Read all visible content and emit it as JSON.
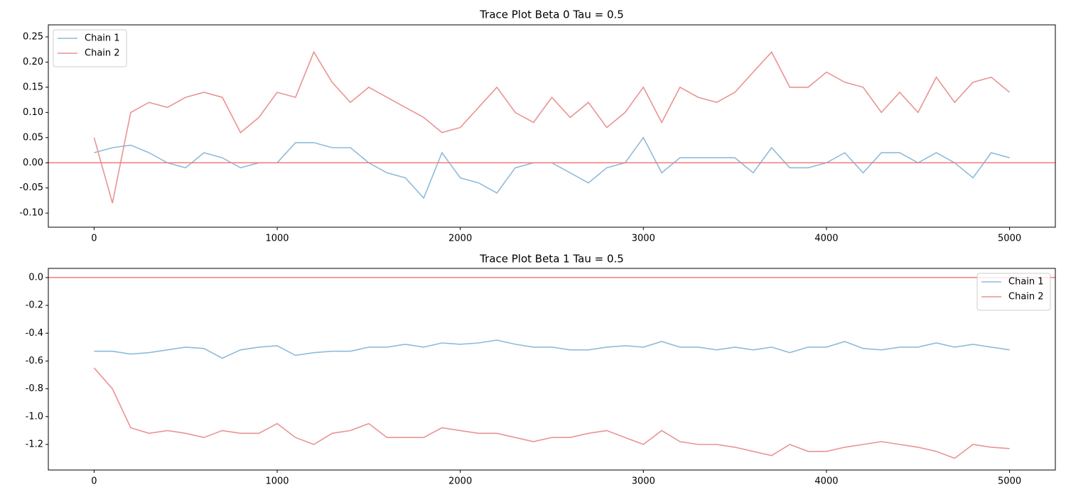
{
  "chart_data": [
    {
      "type": "line",
      "title": "Trace Plot Beta 0 Tau = 0.5",
      "x": [
        0,
        100,
        200,
        300,
        400,
        500,
        600,
        700,
        800,
        900,
        1000,
        1100,
        1200,
        1300,
        1400,
        1500,
        1600,
        1700,
        1800,
        1900,
        2000,
        2100,
        2200,
        2300,
        2400,
        2500,
        2600,
        2700,
        2800,
        2900,
        3000,
        3100,
        3200,
        3300,
        3400,
        3500,
        3600,
        3700,
        3800,
        3900,
        4000,
        4100,
        4200,
        4300,
        4400,
        4500,
        4600,
        4700,
        4800,
        4900,
        5000
      ],
      "series": [
        {
          "name": "Chain 1",
          "color": "#8fbbd9",
          "values": [
            0.02,
            0.03,
            0.035,
            0.02,
            0.0,
            -0.01,
            0.02,
            0.01,
            -0.01,
            0.0,
            0.0,
            0.04,
            0.04,
            0.03,
            0.03,
            0.0,
            -0.02,
            -0.03,
            -0.07,
            0.02,
            -0.03,
            -0.04,
            -0.06,
            -0.01,
            0.0,
            0.0,
            -0.02,
            -0.04,
            -0.01,
            0.0,
            0.05,
            -0.02,
            0.01,
            0.01,
            0.01,
            0.01,
            -0.02,
            0.03,
            -0.01,
            -0.01,
            0.0,
            0.02,
            -0.02,
            0.02,
            0.02,
            0.0,
            0.02,
            0.0,
            -0.03,
            0.02,
            0.01
          ]
        },
        {
          "name": "Chain 2",
          "color": "#ea9393",
          "values": [
            0.05,
            -0.08,
            0.1,
            0.12,
            0.11,
            0.13,
            0.14,
            0.13,
            0.06,
            0.09,
            0.14,
            0.13,
            0.22,
            0.16,
            0.12,
            0.15,
            0.13,
            0.11,
            0.09,
            0.06,
            0.07,
            0.11,
            0.15,
            0.1,
            0.08,
            0.13,
            0.09,
            0.12,
            0.07,
            0.1,
            0.15,
            0.08,
            0.15,
            0.13,
            0.12,
            0.14,
            0.18,
            0.22,
            0.15,
            0.15,
            0.18,
            0.16,
            0.15,
            0.1,
            0.14,
            0.1,
            0.17,
            0.12,
            0.16,
            0.17,
            0.14
          ]
        }
      ],
      "hline": 0,
      "hline_color": "#f47c7c",
      "xlim": [
        -250,
        5250
      ],
      "xticks": [
        0,
        1000,
        2000,
        3000,
        4000,
        5000
      ],
      "ylim": [
        -0.128,
        0.274
      ],
      "yticks": [
        {
          "value": -0.1,
          "label": "-0.10"
        },
        {
          "value": -0.05,
          "label": "-0.05"
        },
        {
          "value": 0,
          "label": "0.00"
        },
        {
          "value": 0.05,
          "label": "0.05"
        },
        {
          "value": 0.1,
          "label": "0.10"
        },
        {
          "value": 0.15,
          "label": "0.15"
        },
        {
          "value": 0.2,
          "label": "0.20"
        },
        {
          "value": 0.25,
          "label": "0.25"
        }
      ],
      "legend": "upper-left"
    },
    {
      "type": "line",
      "title": "Trace Plot Beta 1 Tau = 0.5",
      "x": [
        0,
        100,
        200,
        300,
        400,
        500,
        600,
        700,
        800,
        900,
        1000,
        1100,
        1200,
        1300,
        1400,
        1500,
        1600,
        1700,
        1800,
        1900,
        2000,
        2100,
        2200,
        2300,
        2400,
        2500,
        2600,
        2700,
        2800,
        2900,
        3000,
        3100,
        3200,
        3300,
        3400,
        3500,
        3600,
        3700,
        3800,
        3900,
        4000,
        4100,
        4200,
        4300,
        4400,
        4500,
        4600,
        4700,
        4800,
        4900,
        5000
      ],
      "series": [
        {
          "name": "Chain 1",
          "color": "#8fbbd9",
          "values": [
            -0.53,
            -0.53,
            -0.55,
            -0.54,
            -0.52,
            -0.5,
            -0.51,
            -0.58,
            -0.52,
            -0.5,
            -0.49,
            -0.56,
            -0.54,
            -0.53,
            -0.53,
            -0.5,
            -0.5,
            -0.48,
            -0.5,
            -0.47,
            -0.48,
            -0.47,
            -0.45,
            -0.48,
            -0.5,
            -0.5,
            -0.52,
            -0.52,
            -0.5,
            -0.49,
            -0.5,
            -0.46,
            -0.5,
            -0.5,
            -0.52,
            -0.5,
            -0.52,
            -0.5,
            -0.54,
            -0.5,
            -0.5,
            -0.46,
            -0.51,
            -0.52,
            -0.5,
            -0.5,
            -0.47,
            -0.5,
            -0.48,
            -0.5,
            -0.52
          ]
        },
        {
          "name": "Chain 2",
          "color": "#ea9393",
          "values": [
            -0.65,
            -0.8,
            -1.08,
            -1.12,
            -1.1,
            -1.12,
            -1.15,
            -1.1,
            -1.12,
            -1.12,
            -1.05,
            -1.15,
            -1.2,
            -1.12,
            -1.1,
            -1.05,
            -1.15,
            -1.15,
            -1.15,
            -1.08,
            -1.1,
            -1.12,
            -1.12,
            -1.15,
            -1.18,
            -1.15,
            -1.15,
            -1.12,
            -1.1,
            -1.15,
            -1.2,
            -1.1,
            -1.18,
            -1.2,
            -1.2,
            -1.22,
            -1.25,
            -1.28,
            -1.2,
            -1.25,
            -1.25,
            -1.22,
            -1.2,
            -1.18,
            -1.2,
            -1.22,
            -1.25,
            -1.3,
            -1.2,
            -1.22,
            -1.23
          ]
        }
      ],
      "hline": 0,
      "hline_color": "#f47c7c",
      "xlim": [
        -250,
        5250
      ],
      "xticks": [
        0,
        1000,
        2000,
        3000,
        4000,
        5000
      ],
      "ylim": [
        -1.384,
        0.066
      ],
      "yticks": [
        {
          "value": -1.2,
          "label": "-1.2"
        },
        {
          "value": -1.0,
          "label": "-1.0"
        },
        {
          "value": -0.8,
          "label": "-0.8"
        },
        {
          "value": -0.6,
          "label": "-0.6"
        },
        {
          "value": -0.4,
          "label": "-0.4"
        },
        {
          "value": -0.2,
          "label": "-0.2"
        },
        {
          "value": 0,
          "label": "0.0"
        }
      ],
      "legend": "upper-right"
    }
  ]
}
